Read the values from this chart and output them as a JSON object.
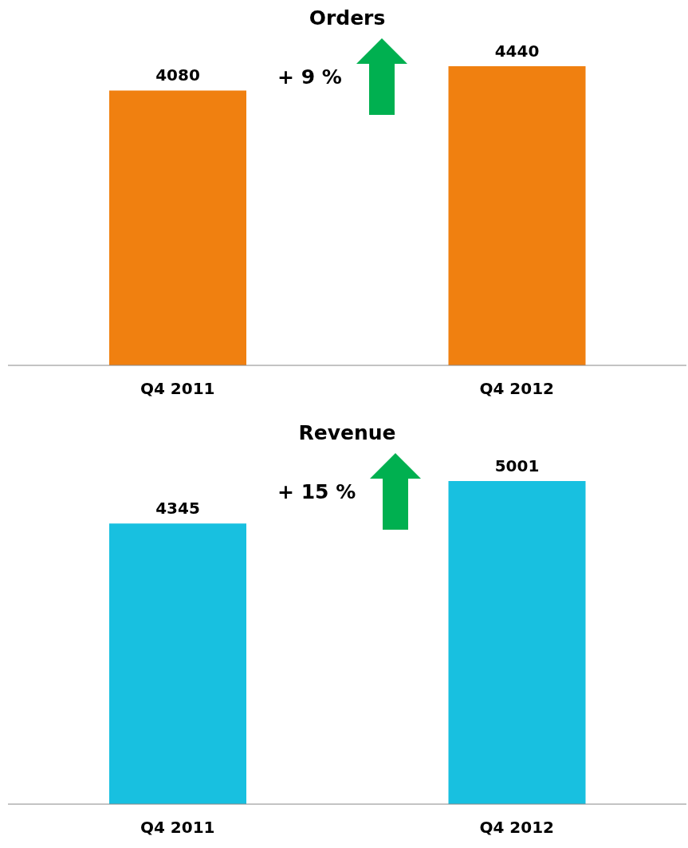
{
  "chart_data": [
    {
      "type": "bar",
      "title": "Orders",
      "categories": [
        "Q4 2011",
        "Q4 2012"
      ],
      "values": [
        4080,
        4440
      ],
      "color": "#f08010",
      "data_labels": true,
      "tick_labels": "x",
      "grid": false,
      "legend": false,
      "annotations": [
        "+ 9 %"
      ]
    },
    {
      "type": "bar",
      "title": "Revenue",
      "categories": [
        "Q4 2011",
        "Q4 2012"
      ],
      "values": [
        4345,
        5001
      ],
      "color": "#18c0e0",
      "data_labels": true,
      "tick_labels": "x",
      "grid": false,
      "legend": false,
      "annotations": [
        "+ 15 %"
      ]
    }
  ]
}
